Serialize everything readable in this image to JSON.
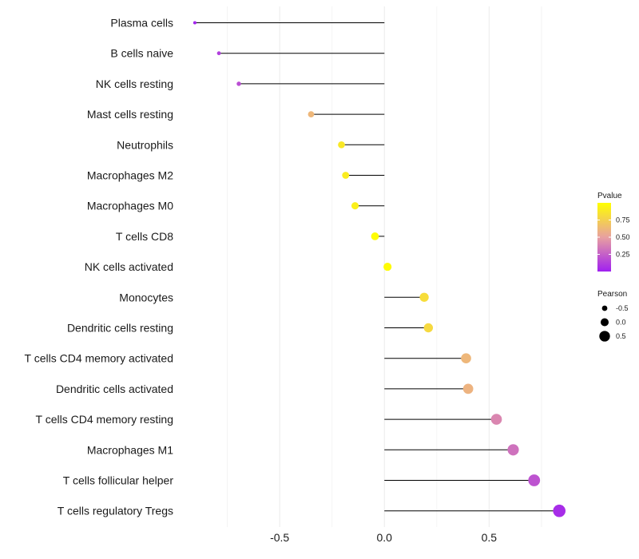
{
  "chart_data": {
    "type": "lollipop",
    "categories": [
      "Plasma cells",
      "B cells naive",
      "NK cells resting",
      "Mast cells resting",
      "Neutrophils",
      "Macrophages M2",
      "Macrophages M0",
      "T cells CD8",
      "NK cells activated",
      "Monocytes",
      "Dendritic cells resting",
      "T cells CD4 memory activated",
      "Dendritic cells activated",
      "T cells CD4 memory resting",
      "Macrophages M1",
      "T cells follicular helper",
      "T cells regulatory  Tregs"
    ],
    "pearson": [
      -0.905,
      -0.79,
      -0.695,
      -0.35,
      -0.205,
      -0.185,
      -0.14,
      -0.045,
      0.015,
      0.19,
      0.21,
      0.39,
      0.4,
      0.535,
      0.615,
      0.715,
      0.835
    ],
    "pvalue": [
      0.02,
      0.12,
      0.18,
      0.62,
      0.88,
      0.9,
      0.92,
      0.99,
      0.98,
      0.82,
      0.8,
      0.62,
      0.6,
      0.4,
      0.32,
      0.2,
      0.05
    ],
    "xlim": [
      -0.92,
      0.88
    ],
    "x_ticks": [
      -0.5,
      0.0,
      0.5
    ],
    "x_tick_labels": [
      "-0.5",
      "0.0",
      "0.5"
    ],
    "grid": true,
    "legend_position": "right",
    "color_legend": {
      "title": "Pvalue",
      "ticks": [
        0.75,
        0.5,
        0.25
      ],
      "tick_labels": [
        "0.75",
        "0.50",
        "0.25"
      ],
      "low_color": "#a020f0",
      "mid_color": "#e8a0a0",
      "high_color": "#ffff00",
      "range": [
        0.0,
        1.0
      ]
    },
    "size_legend": {
      "title": "Pearson",
      "values": [
        -0.5,
        0.0,
        0.5
      ],
      "labels": [
        "-0.5",
        "0.0",
        "0.5"
      ]
    }
  }
}
